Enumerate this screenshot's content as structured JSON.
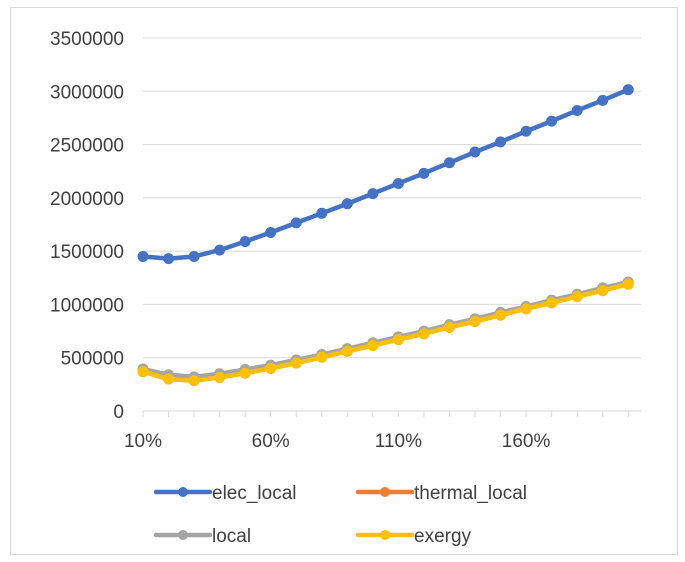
{
  "chart_data": {
    "type": "line",
    "title": "",
    "xlabel": "",
    "ylabel": "",
    "x": [
      "10%",
      "20%",
      "30%",
      "40%",
      "50%",
      "60%",
      "70%",
      "80%",
      "90%",
      "100%",
      "110%",
      "120%",
      "130%",
      "140%",
      "150%",
      "160%",
      "170%",
      "180%",
      "190%",
      "200%"
    ],
    "x_tick_labels": [
      "10%",
      "60%",
      "110%",
      "160%"
    ],
    "ylim": [
      0,
      3500000
    ],
    "y_ticks": [
      0,
      500000,
      1000000,
      1500000,
      2000000,
      2500000,
      3000000,
      3500000
    ],
    "y_tick_labels": [
      "0",
      "500000",
      "1000000",
      "1500000",
      "2000000",
      "2500000",
      "3000000",
      "3500000"
    ],
    "grid": "horizontal",
    "legend_position": "bottom",
    "series": [
      {
        "name": "elec_local",
        "color": "#4472c4",
        "values": [
          1450000,
          1430000,
          1450000,
          1510000,
          1590000,
          1675000,
          1765000,
          1855000,
          1945000,
          2040000,
          2135000,
          2230000,
          2330000,
          2430000,
          2525000,
          2625000,
          2720000,
          2820000,
          2915000,
          3015000
        ]
      },
      {
        "name": "thermal_local",
        "color": "#ed7d31",
        "values": [
          370000,
          300000,
          285000,
          315000,
          355000,
          400000,
          450000,
          505000,
          560000,
          615000,
          670000,
          725000,
          785000,
          840000,
          900000,
          960000,
          1015000,
          1075000,
          1130000,
          1190000
        ]
      },
      {
        "name": "local",
        "color": "#a5a5a5",
        "values": [
          395000,
          340000,
          320000,
          350000,
          390000,
          430000,
          480000,
          530000,
          585000,
          640000,
          695000,
          750000,
          810000,
          865000,
          925000,
          980000,
          1040000,
          1095000,
          1155000,
          1210000
        ]
      },
      {
        "name": "exergy",
        "color": "#ffc000",
        "values": [
          370000,
          300000,
          285000,
          315000,
          355000,
          400000,
          450000,
          505000,
          560000,
          615000,
          670000,
          725000,
          785000,
          840000,
          900000,
          960000,
          1015000,
          1075000,
          1130000,
          1190000
        ]
      }
    ]
  }
}
